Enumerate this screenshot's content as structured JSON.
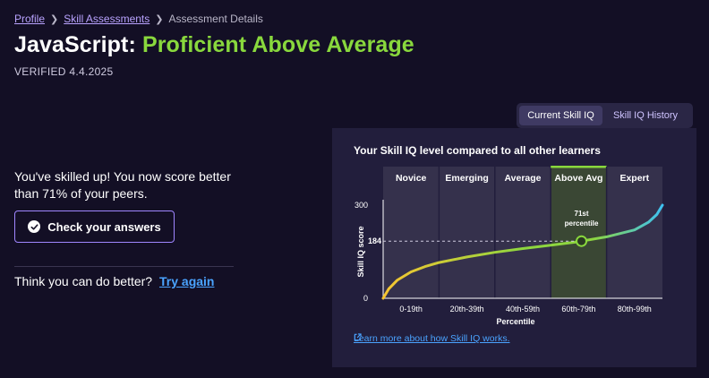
{
  "breadcrumb": {
    "items": [
      {
        "label": "Profile",
        "link": true
      },
      {
        "label": "Skill Assessments",
        "link": true
      },
      {
        "label": "Assessment Details",
        "link": false
      }
    ]
  },
  "header": {
    "skill": "JavaScript:",
    "level": "Proficient Above Average",
    "verified": "VERIFIED 4.4.2025"
  },
  "result": {
    "message": "You've skilled up! You now score better than 71% of your peers.",
    "check_button": "Check your answers",
    "better_prompt": "Think you can do better?",
    "try_again": "Try again"
  },
  "tabs": [
    {
      "label": "Current Skill IQ",
      "active": true
    },
    {
      "label": "Skill IQ History",
      "active": false
    }
  ],
  "chart_panel": {
    "heading": "Your Skill IQ level compared to all other learners",
    "learn_more": "Learn more about how Skill IQ works."
  },
  "colors": {
    "accent_green": "#89d83d",
    "link_blue": "#4aa3ff",
    "purple": "#9f86ff",
    "curve_start": "#f7c531",
    "curve_end": "#3ec1f2"
  },
  "chart_data": {
    "type": "line",
    "bands": [
      "Novice",
      "Emerging",
      "Average",
      "Above Avg",
      "Expert"
    ],
    "highlighted_band": "Above Avg",
    "categories": [
      "0-19th",
      "20th-39th",
      "40th-59th",
      "60th-79th",
      "80th-99th"
    ],
    "xlabel": "Percentile",
    "ylabel": "Skill IQ score",
    "ylim": [
      0,
      300
    ],
    "y_ticks": [
      0,
      300
    ],
    "xlim": [
      0,
      100
    ],
    "series": [
      {
        "x": [
          0,
          2,
          5,
          10,
          15,
          20,
          30,
          40,
          50,
          60,
          70,
          71,
          80,
          90,
          95,
          98,
          100
        ],
        "values": [
          0,
          30,
          58,
          85,
          102,
          115,
          133,
          148,
          160,
          171,
          182,
          184,
          198,
          220,
          245,
          270,
          300
        ]
      }
    ],
    "marker": {
      "x": 71,
      "value": 184,
      "label_line1": "71st",
      "label_line2": "percentile",
      "score_label": "184"
    }
  }
}
